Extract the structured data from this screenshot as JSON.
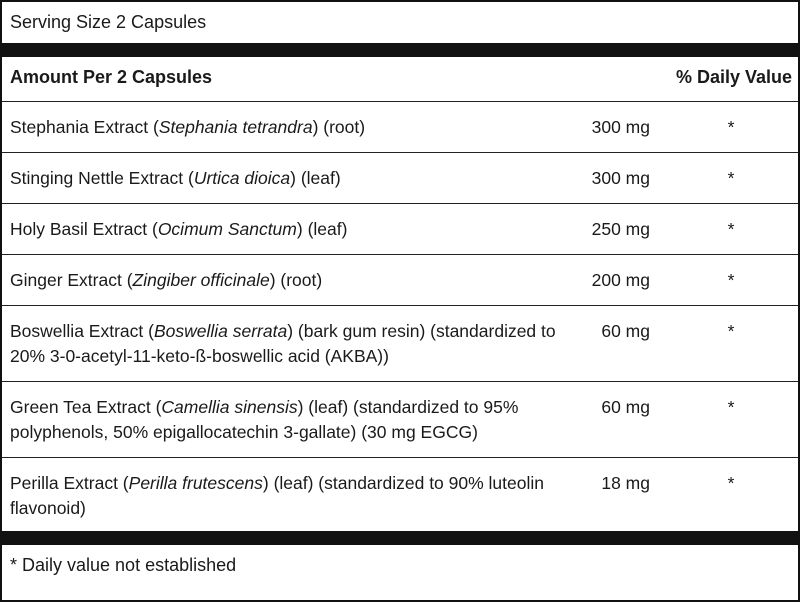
{
  "serving_size": "Serving Size 2 Capsules",
  "header": {
    "amount": "Amount Per 2 Capsules",
    "daily_value": "% Daily Value"
  },
  "rows": [
    {
      "name": "Stephania Extract (",
      "latin": "Stephania tetrandra",
      "rest": ") (root)",
      "amount": "300 mg",
      "dv": "*"
    },
    {
      "name": "Stinging Nettle Extract (",
      "latin": "Urtica dioica",
      "rest": ") (leaf)",
      "amount": "300 mg",
      "dv": "*"
    },
    {
      "name": "Holy Basil Extract (",
      "latin": "Ocimum Sanctum",
      "rest": ") (leaf)",
      "amount": "250 mg",
      "dv": "*"
    },
    {
      "name": "Ginger Extract (",
      "latin": "Zingiber officinale",
      "rest": ") (root)",
      "amount": "200 mg",
      "dv": "*"
    },
    {
      "name": "Boswellia Extract (",
      "latin": "Boswellia serrata",
      "rest": ") (bark gum resin) (standardized to 20% 3-0-acetyl-11-keto-ß-boswellic acid (AKBA))",
      "amount": "60 mg",
      "dv": "*"
    },
    {
      "name": "Green Tea Extract (",
      "latin": "Camellia sinensis",
      "rest": ") (leaf) (standardized to 95% polyphenols, 50% epigallocatechin 3-gallate) (30 mg EGCG)",
      "amount": "60 mg",
      "dv": "*"
    },
    {
      "name": "Perilla Extract (",
      "latin": "Perilla frutescens",
      "rest": ") (leaf) (standardized to 90% luteolin flavonoid)",
      "amount": "18 mg",
      "dv": "*"
    }
  ],
  "footnote": "* Daily value not established"
}
